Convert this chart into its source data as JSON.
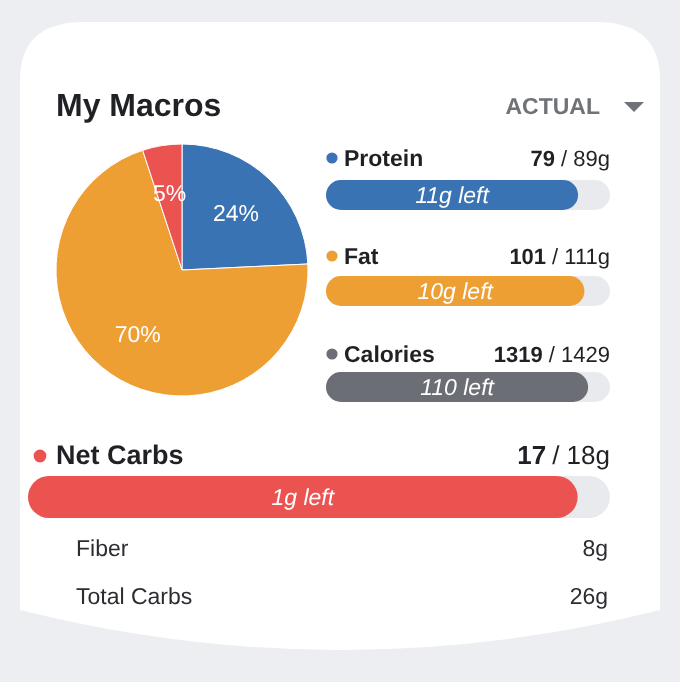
{
  "chart_data": [
    {
      "type": "pie",
      "title": "My Macros",
      "subtitle": "ACTUAL",
      "values": [
        24,
        70,
        5
      ],
      "colors": [
        "#3a73b3",
        "#ee9f33",
        "#ea5350"
      ],
      "value_labels": [
        "24%",
        "70%",
        "5%"
      ]
    },
    {
      "type": "other",
      "categories": [
        "Protein",
        "Fat",
        "Calories",
        "Net Carbs"
      ],
      "series": [
        {
          "colors": [
            "#3a73b3",
            "#ee9f33",
            "#6b6e74",
            "#ea5350"
          ],
          "values": [
            79,
            101,
            1319,
            17
          ],
          "value_labels": [
            "79",
            "101",
            "1319",
            "17"
          ]
        },
        {
          "color": "#e9eaed",
          "values": [
            89,
            111,
            1429,
            18
          ],
          "value_labels": [
            "/ 89g",
            "/ 111g",
            "/ 1429",
            "/ 18g"
          ]
        }
      ],
      "annotations": [
        {
          "text": "11g left",
          "y": "Protein"
        },
        {
          "text": "10g left",
          "y": "Fat"
        },
        {
          "text": "110 left",
          "y": "Calories"
        },
        {
          "text": "1g left",
          "y": "Net Carbs"
        },
        "Fiber",
        "8g",
        "Total Carbs",
        "26g"
      ]
    }
  ]
}
